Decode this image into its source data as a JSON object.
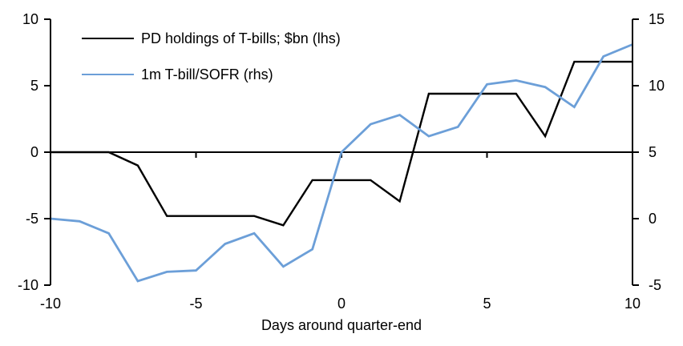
{
  "chart_data": {
    "type": "line",
    "title": "",
    "xlabel": "Days around quarter-end",
    "grid": false,
    "legend_position": "top-left",
    "x": [
      -10,
      -9,
      -8,
      -7,
      -6,
      -5,
      -4,
      -3,
      -2,
      -1,
      0,
      1,
      2,
      3,
      4,
      5,
      6,
      7,
      8,
      9,
      10
    ],
    "series": [
      {
        "name": "PD holdings of T-bills; $bn (lhs)",
        "axis": "lhs",
        "color": "#000000",
        "stroke_width": 2.4,
        "values": [
          0.0,
          0.0,
          0.0,
          -1.0,
          -4.8,
          -4.8,
          -4.8,
          -4.8,
          -5.5,
          -2.1,
          -2.1,
          -2.1,
          -3.7,
          4.4,
          4.4,
          4.4,
          4.4,
          1.2,
          6.8,
          6.8,
          6.8
        ]
      },
      {
        "name": "1m T-bill/SOFR (rhs)",
        "axis": "rhs",
        "color": "#6C9FD8",
        "stroke_width": 2.8,
        "values": [
          0.0,
          -0.2,
          -1.1,
          -4.7,
          -4.0,
          -3.9,
          -1.9,
          -1.1,
          -3.6,
          -2.3,
          5.0,
          7.1,
          7.8,
          6.2,
          6.9,
          10.1,
          10.4,
          9.9,
          8.4,
          12.2,
          13.1
        ]
      }
    ],
    "axes": {
      "lhs": {
        "range": [
          -10,
          10
        ],
        "ticks": [
          "10",
          "5",
          "0",
          "-5",
          "-10"
        ],
        "tick_values": [
          10,
          5,
          0,
          -5,
          -10
        ]
      },
      "rhs": {
        "range": [
          -5,
          15
        ],
        "ticks": [
          "15",
          "10",
          "5",
          "0",
          "-5"
        ],
        "tick_values": [
          15,
          10,
          5,
          0,
          -5
        ]
      },
      "x": {
        "range": [
          -10,
          10
        ],
        "ticks": [
          "-10",
          "-5",
          "0",
          "5",
          "10"
        ],
        "tick_values": [
          -10,
          -5,
          0,
          5,
          10
        ]
      }
    },
    "axis_color": "#000000"
  }
}
